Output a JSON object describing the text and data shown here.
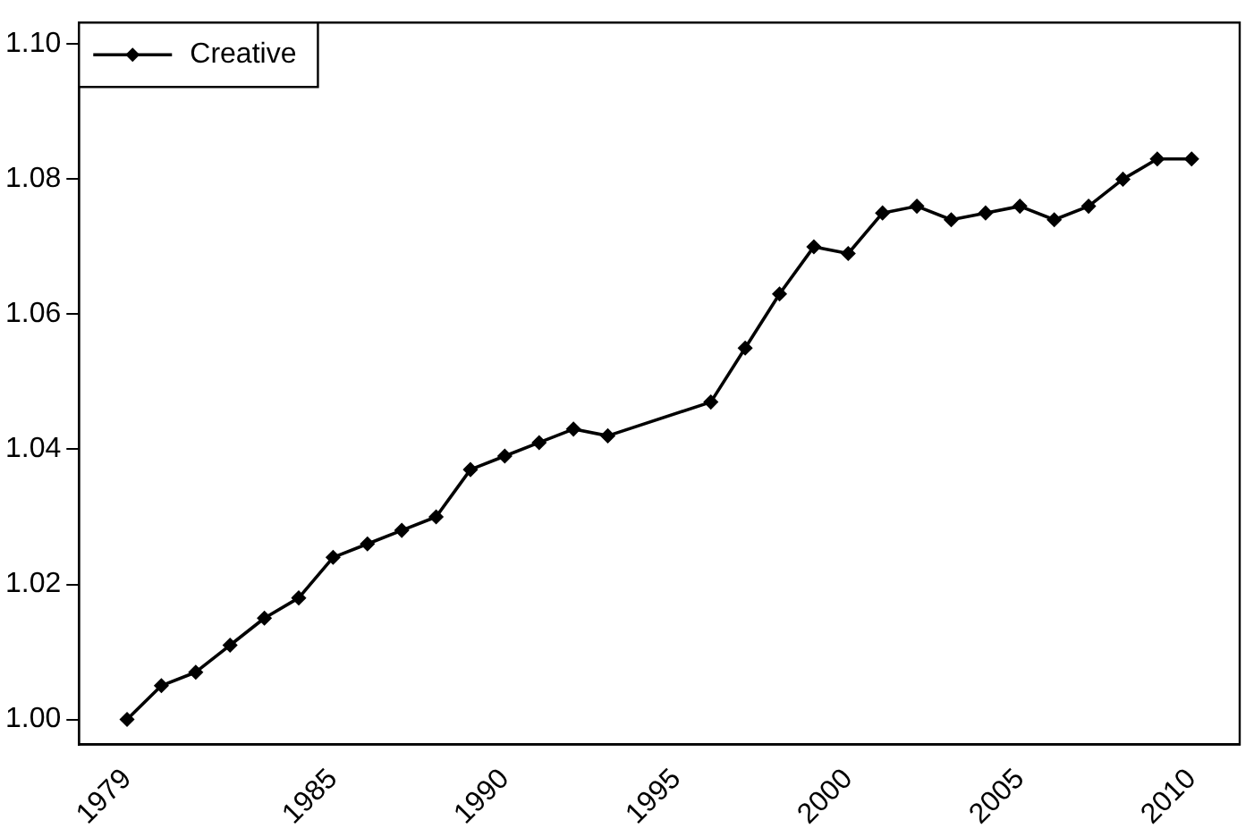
{
  "chart_data": {
    "type": "line",
    "x": [
      1979,
      1980,
      1981,
      1982,
      1983,
      1984,
      1985,
      1986,
      1987,
      1988,
      1989,
      1990,
      1991,
      1992,
      1993,
      1996,
      1997,
      1998,
      1999,
      2000,
      2001,
      2002,
      2003,
      2004,
      2005,
      2006,
      2007,
      2008,
      2009,
      2010
    ],
    "series": [
      {
        "name": "Creative",
        "color": "#000000",
        "values": [
          1.0,
          1.005,
          1.007,
          1.011,
          1.015,
          1.018,
          1.024,
          1.026,
          1.028,
          1.03,
          1.037,
          1.039,
          1.041,
          1.043,
          1.042,
          1.047,
          1.055,
          1.063,
          1.07,
          1.069,
          1.075,
          1.076,
          1.074,
          1.075,
          1.076,
          1.074,
          1.076,
          1.08,
          1.083,
          1.083
        ]
      }
    ],
    "xlim": [
      1977.6,
      2011.4
    ],
    "xticks": [
      1979,
      1985,
      1990,
      1995,
      2000,
      2005,
      2010
    ],
    "ylim": [
      0.9963,
      1.1032
    ],
    "yticks": [
      {
        "value": 1,
        "label": "1.00"
      },
      1.02,
      1.04,
      1.06,
      1.08,
      {
        "value": 1.1,
        "label": "1.10"
      }
    ],
    "grid": false,
    "legend": "top left",
    "marker": "diamond",
    "line_style": "solid"
  }
}
